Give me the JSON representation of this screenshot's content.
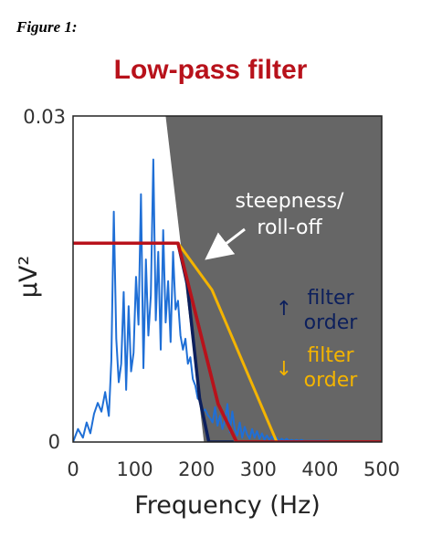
{
  "figure_label": "Figure 1:",
  "chart_data": {
    "type": "line",
    "title": "Low-pass filter",
    "xlabel": "Frequency (Hz)",
    "ylabel": "μV²",
    "xlim": [
      0,
      500
    ],
    "ylim": [
      0,
      0.03
    ],
    "x_ticks": [
      0,
      100,
      200,
      300,
      400,
      500
    ],
    "x_tick_labels": [
      "0",
      "100",
      "200",
      "300",
      "400",
      "500"
    ],
    "y_tick_labels": [
      "0",
      "0.03"
    ],
    "colors": {
      "spectrum": "#1f6fd6",
      "ideal": "#b8121b",
      "high_order": "#0c1f5c",
      "low_order": "#f4b400",
      "stopband": "#666666"
    },
    "spectrum": {
      "x": [
        0,
        8,
        16,
        22,
        28,
        34,
        40,
        46,
        52,
        58,
        62,
        66,
        70,
        74,
        78,
        82,
        86,
        90,
        94,
        98,
        102,
        106,
        110,
        114,
        118,
        122,
        126,
        130,
        134,
        138,
        142,
        146,
        150,
        154,
        158,
        162,
        166,
        170,
        174,
        178,
        182,
        186,
        190,
        194,
        198,
        202,
        206,
        210,
        214,
        218,
        222,
        226,
        230,
        234,
        238,
        242,
        246,
        250,
        254,
        258,
        262,
        266,
        270,
        274,
        278,
        282,
        286,
        290,
        294,
        298,
        302,
        306,
        310,
        314,
        318,
        322,
        326,
        330,
        334,
        338,
        342,
        346,
        350,
        354,
        358,
        362,
        366,
        370,
        374,
        378,
        382,
        386,
        390,
        394,
        398,
        402,
        406,
        410,
        414
      ],
      "y": [
        0,
        0.0012,
        0.0004,
        0.0018,
        0.0008,
        0.0026,
        0.0036,
        0.0028,
        0.0046,
        0.0024,
        0.0075,
        0.0212,
        0.0095,
        0.0055,
        0.0072,
        0.0138,
        0.0048,
        0.0125,
        0.0065,
        0.0082,
        0.0152,
        0.0108,
        0.0228,
        0.0068,
        0.0168,
        0.0098,
        0.0135,
        0.026,
        0.0112,
        0.0175,
        0.0085,
        0.0195,
        0.011,
        0.0148,
        0.0092,
        0.0175,
        0.0122,
        0.013,
        0.0098,
        0.0085,
        0.0095,
        0.0072,
        0.0078,
        0.0058,
        0.0052,
        0.004,
        0.0038,
        0.0028,
        0.003,
        0.0025,
        0.0022,
        0.0018,
        0.0032,
        0.0015,
        0.0024,
        0.0012,
        0.002,
        0.0035,
        0.0009,
        0.0028,
        0.0012,
        0.0006,
        0.0018,
        0.0004,
        0.0014,
        0.0007,
        0.0003,
        0.0012,
        0.0004,
        0.001,
        0.0003,
        0.0008,
        0.0002,
        0.0006,
        0.0002,
        0.0005,
        0.0002,
        0.0004,
        0.0001,
        0.0003,
        0.0001,
        0.0003,
        0.0001,
        0.0002,
        0.0001,
        0.0002,
        0.0001,
        0.0002,
        0.0001,
        0.0001,
        0.0001,
        0.0001,
        0.0001,
        0.0001,
        0.0001,
        0.0001,
        0.0001,
        0.0001,
        0.0001
      ]
    },
    "filters": [
      {
        "key": "ideal",
        "x": [
          0,
          170,
          235,
          265,
          500
        ],
        "y": [
          0.0183,
          0.0183,
          0.0035,
          0,
          0
        ]
      },
      {
        "key": "high_order",
        "x": [
          170,
          185,
          205,
          220,
          260
        ],
        "y": [
          0.0183,
          0.0145,
          0.004,
          0,
          0
        ]
      },
      {
        "key": "low_order",
        "x": [
          170,
          225,
          330,
          345
        ],
        "y": [
          0.0183,
          0.014,
          0,
          0
        ]
      }
    ],
    "stopband_boundary": {
      "x": [
        150,
        212
      ],
      "y": [
        0.03,
        0
      ]
    },
    "annotations": {
      "rolloff_line1": "steepness/",
      "rolloff_line2": "roll-off",
      "up_arrow": "↑",
      "down_arrow": "↓",
      "filter": "filter",
      "order": "order"
    }
  }
}
